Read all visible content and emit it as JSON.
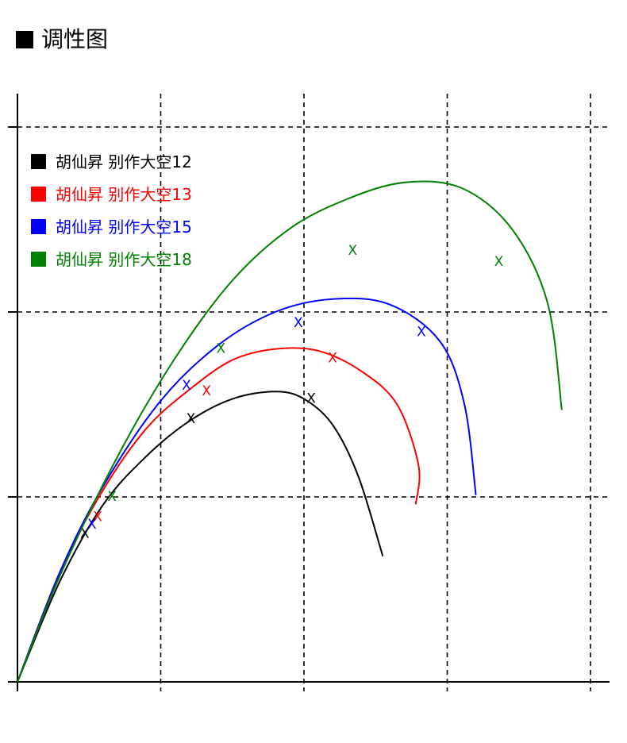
{
  "page": {
    "title": "调性图",
    "title_marker_color": "#000000"
  },
  "chart_data": {
    "type": "line",
    "title": "调性图",
    "xlabel": "",
    "ylabel": "",
    "xlim": [
      0,
      4.2
    ],
    "ylim": [
      0,
      3.2
    ],
    "grid": true,
    "legend_position": "top-left",
    "marker_symbol": "X",
    "series": [
      {
        "name": "胡仙昇 别作大空12",
        "color": "#000000",
        "points": [
          [
            0,
            0
          ],
          [
            0.3,
            0.55
          ],
          [
            0.6,
            0.96
          ],
          [
            0.9,
            1.22
          ],
          [
            1.2,
            1.41
          ],
          [
            1.5,
            1.53
          ],
          [
            1.8,
            1.57
          ],
          [
            2.0,
            1.53
          ],
          [
            2.2,
            1.39
          ],
          [
            2.38,
            1.11
          ],
          [
            2.55,
            0.68
          ]
        ],
        "markers": [
          [
            0.47,
            0.8
          ],
          [
            1.21,
            1.42
          ],
          [
            2.05,
            1.53
          ]
        ]
      },
      {
        "name": "胡仙昇 别作大空13",
        "color": "#FF0000",
        "points": [
          [
            0,
            0
          ],
          [
            0.3,
            0.6
          ],
          [
            0.6,
            1.04
          ],
          [
            0.9,
            1.37
          ],
          [
            1.2,
            1.58
          ],
          [
            1.5,
            1.74
          ],
          [
            1.8,
            1.8
          ],
          [
            2.1,
            1.79
          ],
          [
            2.4,
            1.68
          ],
          [
            2.65,
            1.5
          ],
          [
            2.8,
            1.17
          ],
          [
            2.78,
            0.96
          ]
        ],
        "markers": [
          [
            0.56,
            0.89
          ],
          [
            1.32,
            1.57
          ],
          [
            2.2,
            1.75
          ]
        ]
      },
      {
        "name": "胡仙昇 别作大空15",
        "color": "#0000FF",
        "points": [
          [
            0,
            0
          ],
          [
            0.3,
            0.6
          ],
          [
            0.6,
            1.06
          ],
          [
            1.0,
            1.52
          ],
          [
            1.4,
            1.82
          ],
          [
            1.8,
            2.0
          ],
          [
            2.2,
            2.07
          ],
          [
            2.6,
            2.04
          ],
          [
            2.95,
            1.84
          ],
          [
            3.12,
            1.5
          ],
          [
            3.2,
            1.01
          ]
        ],
        "markers": [
          [
            0.52,
            0.85
          ],
          [
            1.18,
            1.6
          ],
          [
            1.96,
            1.94
          ],
          [
            2.82,
            1.89
          ]
        ]
      },
      {
        "name": "胡仙昇 别作大空18",
        "color": "#008000",
        "points": [
          [
            0,
            0
          ],
          [
            0.3,
            0.58
          ],
          [
            0.7,
            1.22
          ],
          [
            1.1,
            1.75
          ],
          [
            1.5,
            2.17
          ],
          [
            1.9,
            2.45
          ],
          [
            2.3,
            2.61
          ],
          [
            2.7,
            2.7
          ],
          [
            3.1,
            2.67
          ],
          [
            3.45,
            2.45
          ],
          [
            3.7,
            2.05
          ],
          [
            3.8,
            1.47
          ]
        ],
        "markers": [
          [
            0.66,
            1.0
          ],
          [
            1.42,
            1.8
          ],
          [
            2.34,
            2.33
          ],
          [
            3.36,
            2.27
          ]
        ]
      }
    ]
  }
}
